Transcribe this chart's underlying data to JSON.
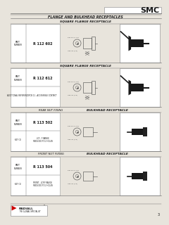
{
  "title": "SMC",
  "subtitle": "FLANGE AND BULKHEAD RECEPTACLES",
  "bg": "#e8e4dc",
  "white": "#ffffff",
  "tc": "#1a1a1a",
  "lc": "#666666",
  "bc": "#999999",
  "sections": [
    {
      "title": "SQUARE FLANGE RECEPTACLE",
      "prefix": "",
      "part_number": "R 112 602",
      "has_extra": false,
      "extra_label": "",
      "extra_value": ""
    },
    {
      "title": "SQUARE FLANGE RECEPTACLE",
      "prefix": "",
      "part_number": "R 112 612",
      "has_extra": true,
      "extra_label": "ADDITIONAL REFERENCE",
      "extra_value": "PCB 11 - ACCESSIBLE CONTACT"
    },
    {
      "title": "BULKHEAD RECEPTACLE",
      "prefix": "REAR NUT FIXING",
      "part_number": "R 113 502",
      "has_extra": true,
      "extra_label": "KEY (1)",
      "extra_value": "LCF - F RANGE\nREDUCED TO 2 HOLES"
    },
    {
      "title": "BULKHEAD RECEPTACLE",
      "prefix": "FRONT NUT FIXING",
      "part_number": "R 113 504",
      "has_extra": true,
      "extra_label": "KEY (1)",
      "extra_value": "FRONT - LCF/F RANGE\nREDUCED TO 2 HOLES"
    }
  ]
}
